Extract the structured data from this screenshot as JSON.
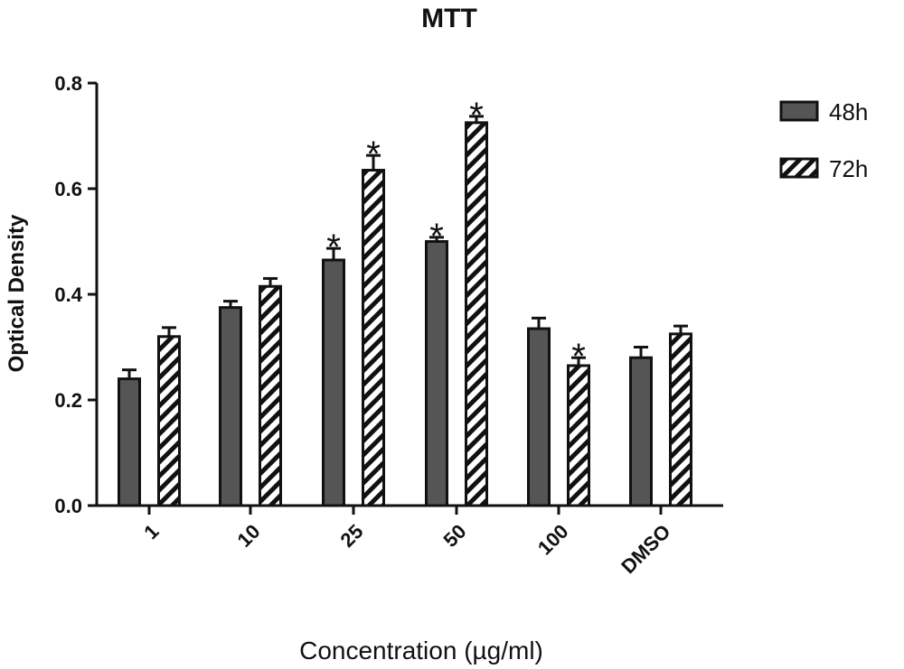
{
  "chart_data": {
    "type": "bar",
    "title": "MTT",
    "xlabel": "Concentration (µg/ml)",
    "ylabel": "Optical Density",
    "categories": [
      "1",
      "10",
      "25",
      "50",
      "100",
      "DMSO"
    ],
    "ylim": [
      0,
      0.8
    ],
    "yticks": [
      "0.0",
      "0.2",
      "0.4",
      "0.6",
      "0.8"
    ],
    "legend_position": "top-right",
    "series": [
      {
        "name": "48h",
        "fill": "solid-gray",
        "color": "#555555",
        "values": [
          0.24,
          0.375,
          0.465,
          0.5,
          0.335,
          0.28
        ],
        "errors": [
          0.017,
          0.012,
          0.022,
          0.008,
          0.02,
          0.02
        ],
        "significant": [
          false,
          false,
          true,
          true,
          false,
          false
        ]
      },
      {
        "name": "72h",
        "fill": "diagonal-hatch",
        "color": "#111111",
        "values": [
          0.32,
          0.415,
          0.635,
          0.725,
          0.265,
          0.325
        ],
        "errors": [
          0.017,
          0.015,
          0.028,
          0.012,
          0.015,
          0.015
        ],
        "significant": [
          false,
          false,
          true,
          true,
          true,
          false
        ]
      }
    ],
    "significance_marker": "*",
    "grid": false
  }
}
